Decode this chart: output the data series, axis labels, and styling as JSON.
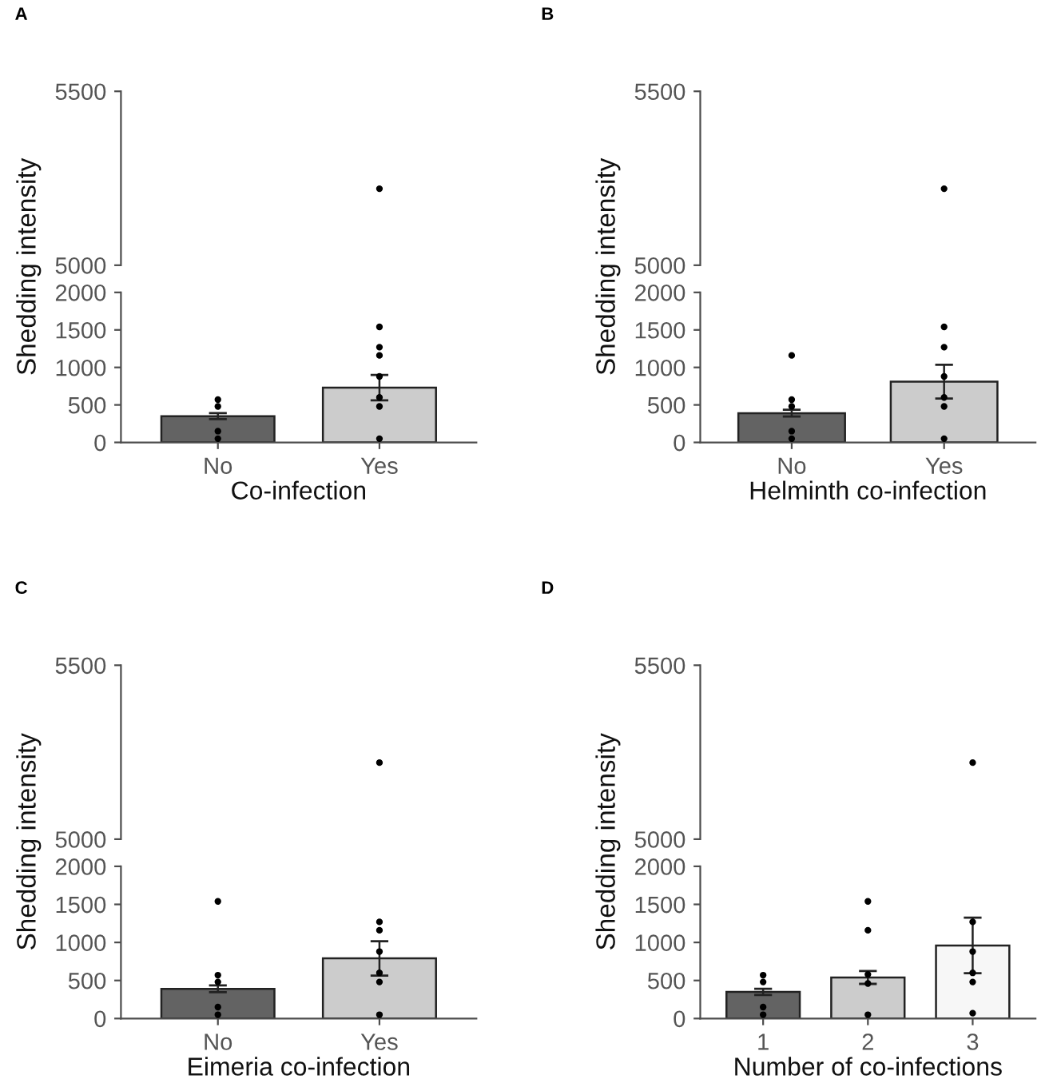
{
  "chart_data": [
    {
      "type": "scatter",
      "title": "A",
      "categories": [
        "No",
        "Yes"
      ],
      "ylim": [
        5000,
        5500
      ],
      "yticks": [
        5000,
        5500
      ],
      "tick_labels": "y",
      "series": [
        {
          "x": [
            "Yes"
          ],
          "values": [
            5220
          ],
          "color": "#000000"
        }
      ]
    },
    {
      "type": "bar",
      "categories": [
        "No",
        "Yes"
      ],
      "xlabel": "Co-infection",
      "ylabel": "Shedding intensity",
      "ylim": [
        0,
        2000
      ],
      "yticks": [
        0,
        500,
        1000,
        1500,
        2000
      ],
      "series": [
        {
          "values": [
            350,
            730
          ],
          "colors": [
            "#636363",
            "#cccccc"
          ],
          "errors": [
            40,
            170
          ]
        },
        {
          "type": "scatter",
          "color": "#000000",
          "x": [
            "No",
            "No",
            "No",
            "No",
            "Yes",
            "Yes",
            "Yes",
            "Yes",
            "Yes",
            "Yes",
            "Yes"
          ],
          "values": [
            50,
            150,
            480,
            570,
            50,
            480,
            600,
            880,
            1160,
            1270,
            1540
          ]
        }
      ]
    },
    {
      "type": "scatter",
      "title": "B",
      "categories": [
        "No",
        "Yes"
      ],
      "ylim": [
        5000,
        5500
      ],
      "yticks": [
        5000,
        5500
      ],
      "tick_labels": "y",
      "series": [
        {
          "x": [
            "Yes"
          ],
          "values": [
            5220
          ],
          "color": "#000000"
        }
      ]
    },
    {
      "type": "bar",
      "categories": [
        "No",
        "Yes"
      ],
      "xlabel": "Helminth co-infection",
      "ylabel": "Shedding intensity",
      "ylim": [
        0,
        2000
      ],
      "yticks": [
        0,
        500,
        1000,
        1500,
        2000
      ],
      "series": [
        {
          "values": [
            390,
            810
          ],
          "colors": [
            "#636363",
            "#cccccc"
          ],
          "errors": [
            45,
            225
          ]
        },
        {
          "type": "scatter",
          "color": "#000000",
          "x": [
            "No",
            "No",
            "No",
            "No",
            "No",
            "Yes",
            "Yes",
            "Yes",
            "Yes",
            "Yes",
            "Yes"
          ],
          "values": [
            1160,
            50,
            150,
            480,
            570,
            50,
            480,
            600,
            880,
            1270,
            1540
          ]
        }
      ]
    },
    {
      "type": "scatter",
      "title": "C",
      "categories": [
        "No",
        "Yes"
      ],
      "ylim": [
        5000,
        5500
      ],
      "yticks": [
        5000,
        5500
      ],
      "tick_labels": "y",
      "series": [
        {
          "x": [
            "Yes"
          ],
          "values": [
            5220
          ],
          "color": "#000000"
        }
      ]
    },
    {
      "type": "bar",
      "categories": [
        "No",
        "Yes"
      ],
      "xlabel": "Eimeria co-infection",
      "ylabel": "Shedding intensity",
      "ylim": [
        0,
        2000
      ],
      "yticks": [
        0,
        500,
        1000,
        1500,
        2000
      ],
      "series": [
        {
          "values": [
            390,
            790
          ],
          "colors": [
            "#636363",
            "#cccccc"
          ],
          "errors": [
            45,
            225
          ]
        },
        {
          "type": "scatter",
          "color": "#000000",
          "x": [
            "No",
            "No",
            "No",
            "No",
            "No",
            "Yes",
            "Yes",
            "Yes",
            "Yes",
            "Yes",
            "Yes"
          ],
          "values": [
            1540,
            50,
            150,
            480,
            570,
            50,
            480,
            600,
            880,
            1160,
            1270
          ]
        }
      ]
    },
    {
      "type": "scatter",
      "title": "D",
      "categories": [
        "1",
        "2",
        "3"
      ],
      "ylim": [
        5000,
        5500
      ],
      "yticks": [
        5000,
        5500
      ],
      "tick_labels": "y",
      "series": [
        {
          "x": [
            "3"
          ],
          "values": [
            5220
          ],
          "color": "#000000"
        }
      ]
    },
    {
      "type": "bar",
      "categories": [
        "1",
        "2",
        "3"
      ],
      "xlabel": "Number of co-infections",
      "ylabel": "Shedding intensity",
      "ylim": [
        0,
        2000
      ],
      "yticks": [
        0,
        500,
        1000,
        1500,
        2000
      ],
      "series": [
        {
          "values": [
            350,
            540,
            960
          ],
          "colors": [
            "#636363",
            "#cccccc",
            "#f7f7f7"
          ],
          "errors": [
            40,
            85,
            365
          ]
        },
        {
          "type": "scatter",
          "color": "#000000",
          "x": [
            "1",
            "1",
            "1",
            "1",
            "2",
            "2",
            "2",
            "2",
            "2",
            "3",
            "3",
            "3",
            "3",
            "3"
          ],
          "values": [
            50,
            150,
            480,
            570,
            50,
            460,
            580,
            1160,
            1540,
            70,
            480,
            600,
            880,
            1270
          ]
        }
      ]
    }
  ]
}
